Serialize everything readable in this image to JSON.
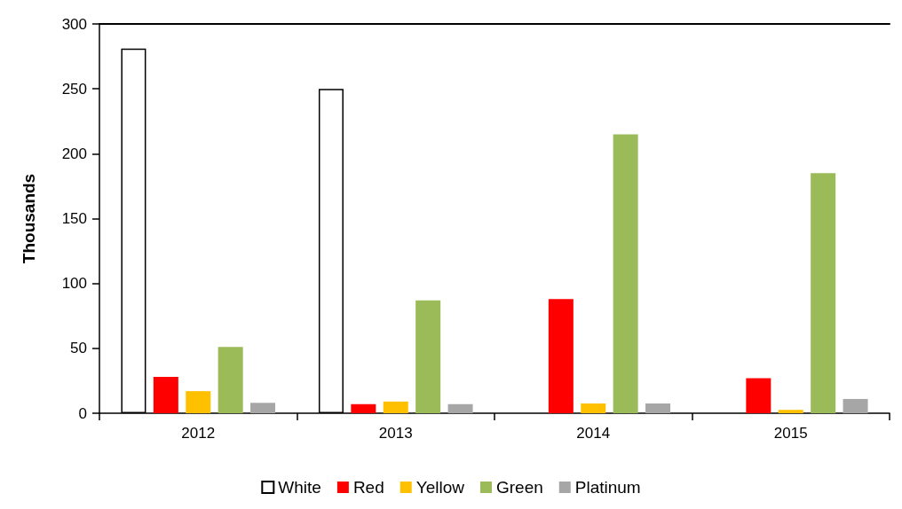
{
  "chart_data": {
    "type": "bar",
    "ylabel": "Thousands",
    "categories": [
      "2012",
      "2013",
      "2014",
      "2015"
    ],
    "series": [
      {
        "name": "White",
        "color": "#ffffff",
        "values": [
          281,
          250,
          null,
          null
        ]
      },
      {
        "name": "Red",
        "color": "#ff0000",
        "values": [
          28,
          7,
          88,
          27
        ]
      },
      {
        "name": "Yellow",
        "color": "#ffc000",
        "values": [
          17,
          9,
          7.5,
          2.6
        ]
      },
      {
        "name": "Green",
        "color": "#9bbb59",
        "values": [
          51,
          87,
          215,
          185
        ]
      },
      {
        "name": "Platinum",
        "color": "#a6a6a6",
        "values": [
          8,
          7,
          7.5,
          11
        ]
      }
    ],
    "ylim": [
      0,
      300
    ],
    "yticks": [
      0,
      50,
      100,
      150,
      200,
      250,
      300
    ],
    "grid": false,
    "legend": "bottom"
  }
}
